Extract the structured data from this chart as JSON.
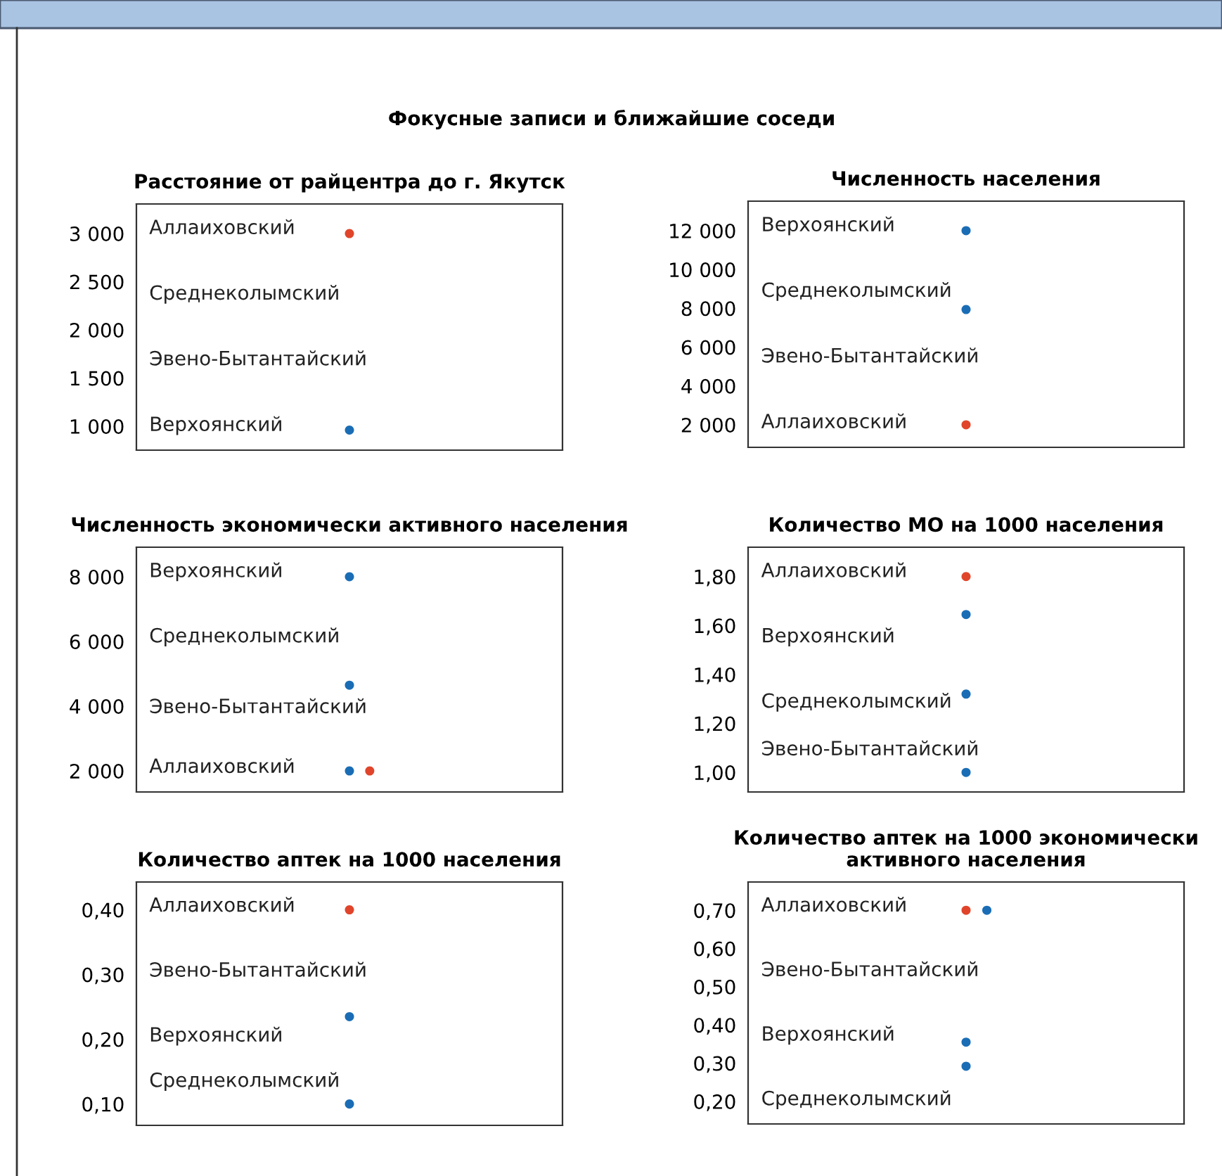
{
  "chart_data": [
    {
      "type": "other",
      "title": "Фокусные записи и ближайшие соседи"
    },
    {
      "type": "scatter",
      "title": "Расстояние от райцентра до г. Якутск",
      "categories": [
        null
      ],
      "ylim": [
        752,
        3307
      ],
      "yticks": [
        {
          "value": 1000,
          "label": "1 000"
        },
        {
          "value": 1500,
          "label": "1 500"
        },
        {
          "value": 2000,
          "label": "2 000"
        },
        {
          "value": 2500,
          "label": "2 500"
        },
        {
          "value": 3000,
          "label": "3 000"
        }
      ],
      "series": [
        {
          "color": "#e0452b",
          "values": [
            3000
          ]
        },
        {
          "color": "#1a6db5",
          "values": [
            960
          ]
        }
      ],
      "annotations": [
        "Аллаиховский",
        "Среднеколымский",
        "Эвено-Бытантайский",
        "Верхоянский"
      ],
      "marker": "circle"
    },
    {
      "type": "scatter",
      "title": "Численность населения",
      "categories": [
        null
      ],
      "ylim": [
        840,
        13520
      ],
      "yticks": [
        {
          "value": 2000,
          "label": "2 000"
        },
        {
          "value": 4000,
          "label": "4 000"
        },
        {
          "value": 6000,
          "label": "6 000"
        },
        {
          "value": 8000,
          "label": "8 000"
        },
        {
          "value": 10000,
          "label": "10 000"
        },
        {
          "value": 12000,
          "label": "12 000"
        }
      ],
      "series": [
        {
          "color": "#1a6db5",
          "values": [
            12000
          ]
        },
        {
          "color": "#1a6db5",
          "values": [
            7940
          ]
        },
        {
          "color": "#e0452b",
          "values": [
            2000
          ]
        }
      ],
      "annotations": [
        "Верхоянский",
        "Среднеколымский",
        "Эвено-Бытантайский",
        "Аллаиховский"
      ],
      "marker": "circle"
    },
    {
      "type": "scatter",
      "title": "Численность экономически активного населения",
      "categories": [
        null,
        null,
        null,
        null,
        null,
        null,
        null,
        null,
        null,
        null,
        null,
        null,
        null,
        null,
        null,
        null,
        null,
        null,
        null,
        null,
        null
      ],
      "ylim": [
        1350,
        8913
      ],
      "yticks": [
        {
          "value": 2000,
          "label": "2 000"
        },
        {
          "value": 4000,
          "label": "4 000"
        },
        {
          "value": 6000,
          "label": "6 000"
        },
        {
          "value": 8000,
          "label": "8 000"
        }
      ],
      "series": [
        {
          "color": "#1a6db5",
          "values": [
            null,
            null,
            null,
            null,
            null,
            null,
            null,
            null,
            null,
            null,
            8000,
            null,
            null,
            null,
            null,
            null,
            null,
            null,
            null,
            null,
            null
          ]
        },
        {
          "color": "#1a6db5",
          "values": [
            null,
            null,
            null,
            null,
            null,
            null,
            null,
            null,
            null,
            null,
            4650,
            null,
            null,
            null,
            null,
            null,
            null,
            null,
            null,
            null,
            null
          ]
        },
        {
          "color": "#1a6db5",
          "values": [
            null,
            null,
            null,
            null,
            null,
            null,
            null,
            null,
            null,
            null,
            2000,
            null,
            null,
            null,
            null,
            null,
            null,
            null,
            null,
            null,
            null
          ]
        },
        {
          "color": "#e0452b",
          "values": [
            null,
            null,
            null,
            null,
            null,
            null,
            null,
            null,
            null,
            null,
            null,
            2000,
            null,
            null,
            null,
            null,
            null,
            null,
            null,
            null,
            null
          ]
        }
      ],
      "annotations": [
        "Верхоянский",
        "Среднеколымский",
        "Эвено-Бытантайский",
        "Аллаиховский"
      ],
      "marker": "circle"
    },
    {
      "type": "scatter",
      "title": "Количество МО на 1000 населения",
      "categories": [
        null
      ],
      "ylim": [
        0.92,
        1.92
      ],
      "yticks": [
        {
          "value": 1.0,
          "label": "1,00"
        },
        {
          "value": 1.2,
          "label": "1,20"
        },
        {
          "value": 1.4,
          "label": "1,40"
        },
        {
          "value": 1.6,
          "label": "1,60"
        },
        {
          "value": 1.8,
          "label": "1,80"
        }
      ],
      "series": [
        {
          "color": "#e0452b",
          "values": [
            1.8
          ]
        },
        {
          "color": "#1a6db5",
          "values": [
            1.645
          ]
        },
        {
          "color": "#1a6db5",
          "values": [
            1.32
          ]
        },
        {
          "color": "#1a6db5",
          "values": [
            1.0
          ]
        }
      ],
      "annotations": [
        "Аллаиховский",
        "Верхоянский",
        "Среднеколымский",
        "Эвено-Бытантайский"
      ],
      "marker": "circle"
    },
    {
      "type": "scatter",
      "title": "Количество аптек на 1000 населения",
      "categories": [
        null
      ],
      "ylim": [
        0.067,
        0.443
      ],
      "yticks": [
        {
          "value": 0.1,
          "label": "0,10"
        },
        {
          "value": 0.2,
          "label": "0,20"
        },
        {
          "value": 0.3,
          "label": "0,30"
        },
        {
          "value": 0.4,
          "label": "0,40"
        }
      ],
      "series": [
        {
          "color": "#e0452b",
          "values": [
            0.4
          ]
        },
        {
          "color": "#1a6db5",
          "values": [
            0.235
          ]
        },
        {
          "color": "#1a6db5",
          "values": [
            0.1
          ]
        }
      ],
      "annotations": [
        "Аллаиховский",
        "Эвено-Бытантайский",
        "Верхоянский",
        "Среднеколымский"
      ],
      "marker": "circle"
    },
    {
      "type": "scatter",
      "title": "Количество аптек на 1000 экономически активного населения",
      "categories": [
        null,
        null,
        null,
        null,
        null,
        null,
        null,
        null,
        null,
        null,
        null,
        null,
        null,
        null,
        null,
        null,
        null,
        null,
        null,
        null,
        null
      ],
      "ylim": [
        0.141,
        0.774
      ],
      "yticks": [
        {
          "value": 0.2,
          "label": "0,20"
        },
        {
          "value": 0.3,
          "label": "0,30"
        },
        {
          "value": 0.4,
          "label": "0,40"
        },
        {
          "value": 0.5,
          "label": "0,50"
        },
        {
          "value": 0.6,
          "label": "0,60"
        },
        {
          "value": 0.7,
          "label": "0,70"
        }
      ],
      "series": [
        {
          "color": "#e0452b",
          "values": [
            null,
            null,
            null,
            null,
            null,
            null,
            null,
            null,
            null,
            null,
            0.7,
            null,
            null,
            null,
            null,
            null,
            null,
            null,
            null,
            null,
            null
          ]
        },
        {
          "color": "#1a6db5",
          "values": [
            null,
            null,
            null,
            null,
            null,
            null,
            null,
            null,
            null,
            null,
            null,
            0.7,
            null,
            null,
            null,
            null,
            null,
            null,
            null,
            null,
            null
          ]
        },
        {
          "color": "#1a6db5",
          "values": [
            null,
            null,
            null,
            null,
            null,
            null,
            null,
            null,
            null,
            null,
            0.355,
            null,
            null,
            null,
            null,
            null,
            null,
            null,
            null,
            null,
            null
          ]
        },
        {
          "color": "#1a6db5",
          "values": [
            null,
            null,
            null,
            null,
            null,
            null,
            null,
            null,
            null,
            null,
            0.292,
            null,
            null,
            null,
            null,
            null,
            null,
            null,
            null,
            null,
            null
          ]
        }
      ],
      "annotations": [
        "Аллаиховский",
        "Эвено-Бытантайский",
        "Верхоянский",
        "Среднеколымский"
      ],
      "marker": "circle"
    }
  ]
}
